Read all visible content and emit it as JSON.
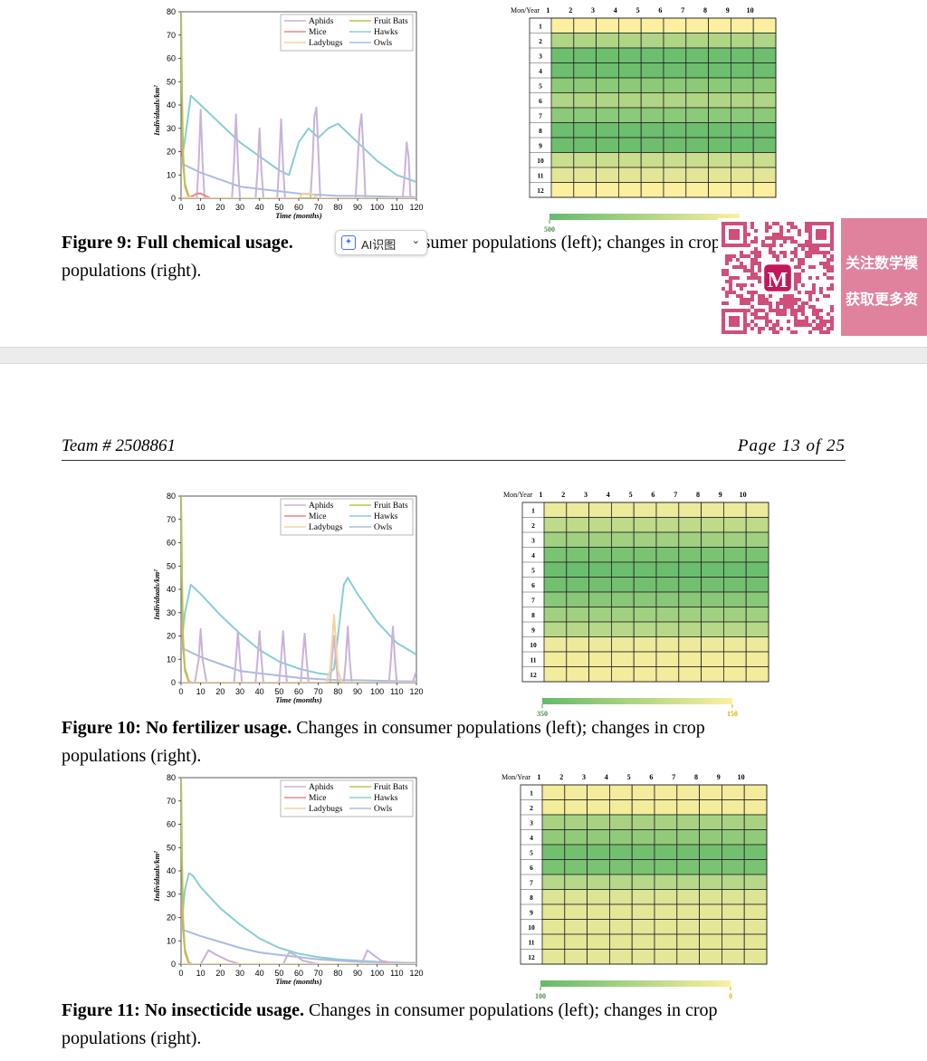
{
  "page_header": {
    "team": "Team # 2508861",
    "page": "Page 13 of 25"
  },
  "ai_tool": {
    "label": "AI识图"
  },
  "promo": {
    "line1": "关注数学模",
    "line2": "获取更多资"
  },
  "figures": [
    {
      "id": "fig9",
      "caption_bold": "Figure 9: Full chemical usage.",
      "caption_rest": " Changes in consumer populations (left); changes in crop populations (right).",
      "caption_rest_visible": " consumer populations (left); changes in crop",
      "caption_line2": "populations (right)."
    },
    {
      "id": "fig10",
      "caption_bold": "Figure 10: No fertilizer usage.",
      "caption_rest": " Changes in consumer populations (left); changes in crop",
      "caption_line2": "populations (right)."
    },
    {
      "id": "fig11",
      "caption_bold": "Figure 11: No insecticide usage.",
      "caption_rest": " Changes in consumer populations (left); changes in crop",
      "caption_line2": "populations (right)."
    }
  ],
  "chart_data": [
    {
      "type": "line",
      "figure": "Figure 9",
      "xlabel": "Time (months)",
      "ylabel": "Individuals/km²",
      "xlim": [
        0,
        120
      ],
      "ylim": [
        0,
        80
      ],
      "xticks": [
        0,
        10,
        20,
        30,
        40,
        50,
        60,
        70,
        80,
        90,
        100,
        110,
        120
      ],
      "yticks": [
        0,
        10,
        20,
        30,
        40,
        50,
        60,
        70,
        80
      ],
      "legend": [
        "Aphids",
        "Fruit Bats",
        "Mice",
        "Hawks",
        "Ladybugs",
        "Owls"
      ],
      "legend_position": "top-right",
      "colors": {
        "Aphids": "#c9b3d9",
        "Fruit Bats": "#b8c84a",
        "Mice": "#e8888a",
        "Hawks": "#88cfcf",
        "Ladybugs": "#f2d3a0",
        "Owls": "#a9bde0"
      },
      "series": [
        {
          "name": "Hawks",
          "x": [
            0,
            2,
            5,
            10,
            15,
            20,
            30,
            40,
            45,
            50,
            55,
            60,
            65,
            70,
            75,
            80,
            90,
            100,
            110,
            120
          ],
          "y": [
            15,
            25,
            44,
            40,
            36,
            32,
            24,
            18,
            15,
            12,
            10,
            24,
            30,
            26,
            30,
            32,
            24,
            16,
            10,
            7
          ]
        },
        {
          "name": "Owls",
          "x": [
            0,
            5,
            10,
            20,
            30,
            40,
            50,
            60,
            70,
            80,
            90,
            100,
            110,
            120
          ],
          "y": [
            15,
            13,
            11,
            8,
            5,
            4,
            3,
            2,
            1.5,
            1,
            1,
            0.8,
            0.6,
            0.5
          ]
        },
        {
          "name": "Aphids",
          "x": [
            0,
            8,
            9,
            10,
            11,
            12,
            26,
            27,
            28,
            29,
            30,
            38,
            39,
            40,
            41,
            42,
            49,
            50,
            51,
            52,
            53,
            66,
            67,
            68,
            69,
            70,
            71,
            89,
            90,
            91,
            92,
            93,
            94,
            113,
            114,
            115,
            116,
            117
          ],
          "y": [
            0,
            0,
            15,
            38,
            15,
            0,
            0,
            15,
            36,
            15,
            0,
            0,
            12,
            30,
            12,
            0,
            0,
            14,
            34,
            14,
            0,
            0,
            15,
            35,
            39,
            20,
            0,
            0,
            15,
            30,
            36,
            20,
            0,
            0,
            10,
            24,
            18,
            0
          ]
        },
        {
          "name": "Mice",
          "x": [
            0,
            2,
            4,
            6,
            8,
            10,
            15,
            120
          ],
          "y": [
            25,
            6,
            0.5,
            1,
            2,
            2,
            0,
            0
          ]
        },
        {
          "name": "Fruit Bats",
          "x": [
            0,
            0.5,
            1,
            2,
            4,
            120
          ],
          "y": [
            80,
            45,
            20,
            5,
            0,
            0
          ]
        },
        {
          "name": "Ladybugs",
          "x": [
            0,
            4,
            8,
            60,
            62,
            66,
            70,
            120
          ],
          "y": [
            0,
            0.5,
            0,
            0,
            2,
            2,
            0,
            0
          ]
        }
      ]
    },
    {
      "type": "heatmap",
      "figure": "Figure 9",
      "corner_label": "Mon/Year",
      "columns": [
        "1",
        "2",
        "3",
        "4",
        "5",
        "6",
        "7",
        "8",
        "9",
        "10"
      ],
      "rows": [
        "1",
        "2",
        "3",
        "4",
        "5",
        "6",
        "7",
        "8",
        "9",
        "10",
        "11",
        "12"
      ],
      "row_values": [
        200,
        350,
        480,
        480,
        420,
        350,
        420,
        480,
        480,
        300,
        250,
        200
      ],
      "scale": {
        "min": 200,
        "max": 500,
        "min_label": "200",
        "max_label": "500",
        "low_color": "#fcefa0",
        "high_color": "#63bb6a"
      }
    },
    {
      "type": "line",
      "figure": "Figure 10",
      "xlabel": "Time (months)",
      "ylabel": "Individuals/km²",
      "xlim": [
        0,
        120
      ],
      "ylim": [
        0,
        80
      ],
      "xticks": [
        0,
        10,
        20,
        30,
        40,
        50,
        60,
        70,
        80,
        90,
        100,
        110,
        120
      ],
      "yticks": [
        0,
        10,
        20,
        30,
        40,
        50,
        60,
        70,
        80
      ],
      "legend": [
        "Aphids",
        "Fruit Bats",
        "Mice",
        "Hawks",
        "Ladybugs",
        "Owls"
      ],
      "legend_position": "top-right",
      "colors": {
        "Aphids": "#c9b3d9",
        "Fruit Bats": "#b8c84a",
        "Mice": "#e8888a",
        "Hawks": "#88cfcf",
        "Ladybugs": "#f2d3a0",
        "Owls": "#a9bde0"
      },
      "series": [
        {
          "name": "Hawks",
          "x": [
            0,
            2,
            5,
            10,
            20,
            30,
            40,
            50,
            60,
            70,
            75,
            78,
            80,
            83,
            85,
            90,
            100,
            110,
            120
          ],
          "y": [
            15,
            30,
            42,
            38,
            29,
            21,
            14,
            9,
            6,
            4,
            3.5,
            6,
            20,
            42,
            45,
            38,
            26,
            17,
            12
          ]
        },
        {
          "name": "Owls",
          "x": [
            0,
            5,
            10,
            20,
            30,
            40,
            50,
            60,
            70,
            80,
            90,
            100,
            110,
            120
          ],
          "y": [
            15,
            13,
            11,
            8,
            5,
            4,
            3,
            2,
            1.5,
            1,
            1,
            0.8,
            0.6,
            0.5
          ]
        },
        {
          "name": "Aphids",
          "x": [
            0,
            7,
            9,
            10,
            11,
            13,
            27,
            28,
            29,
            30,
            31,
            38,
            39,
            40,
            41,
            42,
            50,
            51,
            52,
            53,
            54,
            61,
            62,
            63,
            64,
            65,
            76,
            77,
            78,
            79,
            80,
            83,
            84,
            85,
            86,
            87,
            106,
            107,
            108,
            109,
            110,
            118,
            120
          ],
          "y": [
            0,
            0,
            10,
            23,
            10,
            0,
            0,
            10,
            22,
            10,
            0,
            0,
            10,
            22,
            10,
            0,
            0,
            10,
            22,
            10,
            0,
            0,
            10,
            21,
            10,
            0,
            0,
            10,
            20,
            10,
            0,
            0,
            10,
            24,
            10,
            0,
            0,
            10,
            24,
            10,
            0,
            0,
            5
          ]
        },
        {
          "name": "Mice",
          "x": [
            0,
            2,
            4,
            6,
            10,
            120
          ],
          "y": [
            25,
            6,
            0.5,
            0,
            0,
            0
          ]
        },
        {
          "name": "Fruit Bats",
          "x": [
            0,
            0.5,
            1,
            2,
            4,
            120
          ],
          "y": [
            80,
            45,
            20,
            5,
            0,
            0
          ]
        },
        {
          "name": "Ladybugs",
          "x": [
            0,
            74,
            76,
            78,
            80,
            82,
            120
          ],
          "y": [
            0,
            0,
            5,
            29,
            5,
            0,
            0
          ]
        }
      ]
    },
    {
      "type": "heatmap",
      "figure": "Figure 10",
      "corner_label": "Mon/Year",
      "columns": [
        "1",
        "2",
        "3",
        "4",
        "5",
        "6",
        "7",
        "8",
        "9",
        "10"
      ],
      "rows": [
        "1",
        "2",
        "3",
        "4",
        "5",
        "6",
        "7",
        "8",
        "9",
        "10",
        "11",
        "12"
      ],
      "row_values": [
        170,
        230,
        270,
        320,
        340,
        330,
        300,
        270,
        240,
        170,
        160,
        160
      ],
      "scale": {
        "min": 150,
        "max": 350,
        "min_label": "150",
        "max_label": "350",
        "low_color": "#fcefa0",
        "high_color": "#63bb6a"
      }
    },
    {
      "type": "line",
      "figure": "Figure 11",
      "xlabel": "Time (months)",
      "ylabel": "Individuals/km²",
      "xlim": [
        0,
        120
      ],
      "ylim": [
        0,
        80
      ],
      "xticks": [
        0,
        10,
        20,
        30,
        40,
        50,
        60,
        70,
        80,
        90,
        100,
        110,
        120
      ],
      "yticks": [
        0,
        10,
        20,
        30,
        40,
        50,
        60,
        70,
        80
      ],
      "legend": [
        "Aphids",
        "Fruit Bats",
        "Mice",
        "Hawks",
        "Ladybugs",
        "Owls"
      ],
      "legend_position": "top-right",
      "colors": {
        "Aphids": "#c9b3d9",
        "Fruit Bats": "#b8c84a",
        "Mice": "#e8888a",
        "Hawks": "#88cfcf",
        "Ladybugs": "#f2d3a0",
        "Owls": "#a9bde0"
      },
      "series": [
        {
          "name": "Hawks",
          "x": [
            0,
            2,
            4,
            6,
            10,
            20,
            30,
            40,
            50,
            60,
            70,
            80,
            90,
            100,
            110,
            120
          ],
          "y": [
            15,
            32,
            39,
            38,
            33,
            24,
            17,
            11,
            7,
            4.5,
            3,
            2,
            1.5,
            1,
            0.7,
            0.5
          ]
        },
        {
          "name": "Owls",
          "x": [
            0,
            5,
            10,
            20,
            30,
            40,
            50,
            60,
            70,
            80,
            90,
            100,
            110,
            120
          ],
          "y": [
            15,
            13.5,
            12,
            9.5,
            7,
            5,
            4,
            3,
            2,
            1.5,
            1,
            0.8,
            0.6,
            0.5
          ]
        },
        {
          "name": "Aphids",
          "x": [
            0,
            10,
            14,
            18,
            24,
            30,
            52,
            55,
            58,
            62,
            70,
            92,
            95,
            98,
            102,
            110,
            120
          ],
          "y": [
            0,
            0,
            6,
            4,
            1.5,
            0,
            0,
            5,
            4,
            1.5,
            0,
            0,
            6,
            4,
            1.5,
            0,
            0
          ]
        },
        {
          "name": "Mice",
          "x": [
            0,
            2,
            4,
            6,
            10,
            120
          ],
          "y": [
            25,
            6,
            0.5,
            0,
            0,
            0
          ]
        },
        {
          "name": "Fruit Bats",
          "x": [
            0,
            0.5,
            1,
            2,
            4,
            120
          ],
          "y": [
            80,
            45,
            20,
            5,
            0,
            0
          ]
        },
        {
          "name": "Ladybugs",
          "x": [
            0,
            120
          ],
          "y": [
            0,
            0
          ]
        }
      ]
    },
    {
      "type": "heatmap",
      "figure": "Figure 11",
      "corner_label": "Mon/Year",
      "columns": [
        "1",
        "2",
        "3",
        "4",
        "5",
        "6",
        "7",
        "8",
        "9",
        "10"
      ],
      "rows": [
        "1",
        "2",
        "3",
        "4",
        "5",
        "6",
        "7",
        "8",
        "9",
        "10",
        "11",
        "12"
      ],
      "row_values": [
        5,
        5,
        55,
        70,
        90,
        85,
        45,
        20,
        15,
        15,
        15,
        15
      ],
      "scale": {
        "min": 0,
        "max": 100,
        "min_label": "0",
        "max_label": "100",
        "low_color": "#fcefa0",
        "high_color": "#63bb6a"
      }
    }
  ]
}
